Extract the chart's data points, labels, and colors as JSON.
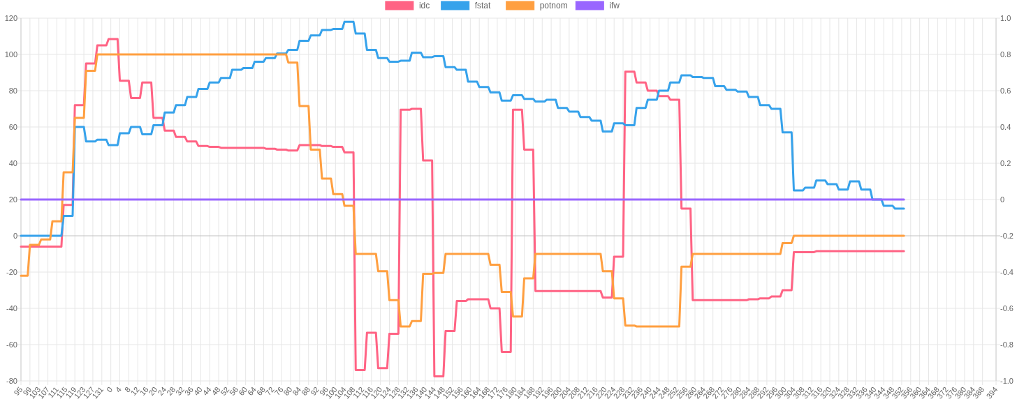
{
  "chart_data": {
    "type": "line",
    "legend": "top",
    "grid": true,
    "categories": [
      "95",
      null,
      null,
      null,
      "99",
      null,
      null,
      null,
      "103",
      null,
      null,
      null,
      "107",
      null,
      null,
      null,
      "111",
      null,
      null,
      null,
      "115",
      null,
      null,
      null,
      "119",
      null,
      null,
      null,
      "123",
      null,
      null,
      null,
      "127",
      null,
      null,
      null,
      "131",
      null,
      null,
      null,
      "0",
      null,
      null,
      null,
      "4",
      null,
      null,
      null,
      "8",
      null,
      null,
      null,
      "12",
      null,
      null,
      null,
      "16",
      null,
      null,
      null,
      "20",
      null,
      null,
      null,
      "24",
      null,
      null,
      null,
      "28",
      null,
      null,
      null,
      "32",
      null,
      null,
      null,
      "36",
      null,
      null,
      null,
      "40",
      null,
      null,
      null,
      "44",
      null,
      null,
      null,
      "48",
      null,
      null,
      null,
      "52",
      null,
      null,
      null,
      "56",
      null,
      null,
      null,
      "60",
      null,
      null,
      null,
      "64",
      null,
      null,
      null,
      "68",
      null,
      null,
      null,
      "72",
      null,
      null,
      null,
      "76",
      null,
      null,
      null,
      "80",
      null,
      null,
      null,
      "84",
      null,
      null,
      null,
      "88",
      null,
      null,
      null,
      "92",
      null,
      null,
      null,
      "96",
      null,
      null,
      null,
      "100",
      null,
      null,
      null,
      "104",
      null,
      null,
      null,
      "108",
      null,
      null,
      null,
      "112",
      null,
      null,
      null,
      "116",
      null,
      null,
      null,
      "120",
      null,
      null,
      null,
      "124",
      null,
      null,
      null,
      "128",
      null,
      null,
      null,
      "132",
      null,
      null,
      null,
      "136",
      null,
      null,
      null,
      "140",
      null,
      null,
      null,
      "144",
      null,
      null,
      null,
      "148",
      null,
      null,
      null,
      "152",
      null,
      null,
      null,
      "156",
      null,
      null,
      null,
      "160",
      null,
      null,
      null,
      "164",
      null,
      null,
      null,
      "168",
      null,
      null,
      null,
      "172",
      null,
      null,
      null,
      "176",
      null,
      null,
      null,
      "180",
      null,
      null,
      null,
      "184",
      null,
      null,
      null,
      "188",
      null,
      null,
      null,
      "192",
      null,
      null,
      null,
      "196",
      null,
      null,
      null,
      "200",
      null,
      null,
      null,
      "204",
      null,
      null,
      null,
      "208",
      null,
      null,
      null,
      "212",
      null,
      null,
      null,
      "216",
      null,
      null,
      null,
      "220",
      null,
      null,
      null,
      "224",
      null,
      null,
      null,
      "228",
      null,
      null,
      null,
      "232",
      null,
      null,
      null,
      "236",
      null,
      null,
      null,
      "240",
      null,
      null,
      null,
      "244",
      null,
      null,
      null,
      "248",
      null,
      null,
      null,
      "252",
      null,
      null,
      null,
      "256",
      null,
      null,
      null,
      "260",
      null,
      null,
      null,
      "264",
      null,
      null,
      null,
      "268",
      null,
      null,
      null,
      "272",
      null,
      null,
      null,
      "276",
      null,
      null,
      null,
      "280",
      null,
      null,
      null,
      "284",
      null,
      null,
      null,
      "288",
      null,
      null,
      null,
      "292",
      null,
      null,
      null,
      "296",
      null,
      null,
      null,
      "300",
      null,
      null,
      null,
      "304",
      null,
      null,
      null,
      "308",
      null,
      null,
      null,
      "312",
      null,
      null,
      null,
      "316",
      null,
      null,
      null,
      "320",
      null,
      null,
      null,
      "324",
      null,
      null,
      null,
      "328",
      null,
      null,
      null,
      "332",
      null,
      null,
      null,
      "336",
      null,
      null,
      null,
      "340",
      null,
      null,
      null,
      "344",
      null,
      null,
      null,
      "348",
      null,
      null,
      null,
      "352",
      null,
      null,
      null,
      "356",
      null,
      null,
      null,
      "360",
      null,
      null,
      null,
      "364",
      null,
      null,
      null,
      "368",
      null,
      null,
      null,
      "372",
      null,
      null,
      null,
      "376",
      null,
      null,
      null,
      "380",
      null,
      null,
      null,
      "384",
      null,
      null,
      null,
      "388",
      null,
      null,
      null,
      null,
      null,
      "394"
    ],
    "ylim": [
      -80,
      120
    ],
    "yticks": [
      -80,
      -60,
      -40,
      -20,
      0,
      20,
      40,
      60,
      80,
      100,
      120
    ],
    "y2lim": [
      -1,
      1
    ],
    "y2ticks": [
      {
        "value": -1,
        "label": "-1.0"
      },
      -0.8,
      -0.6,
      -0.4,
      -0.2,
      0,
      0.2,
      0.4,
      0.6,
      0.8,
      {
        "value": 1,
        "label": "1.0"
      }
    ],
    "series": [
      {
        "name": "idc",
        "color": "#ff6384",
        "values": [
          -6,
          -6,
          -6,
          -6,
          -6,
          -6,
          -6,
          -6,
          -6,
          -6,
          -6,
          -6,
          -6,
          -6,
          -6,
          -6,
          -6,
          -6,
          -6,
          17,
          17,
          17,
          17,
          17,
          72,
          72,
          72,
          72,
          72,
          95,
          95,
          95,
          95,
          95,
          105,
          105,
          105,
          105,
          105,
          108.5,
          108.5,
          108.5,
          108.5,
          108.5,
          85.5,
          85.5,
          85.5,
          85.5,
          85.5,
          76,
          76,
          76,
          76,
          76,
          84.5,
          84.5,
          84.5,
          84.5,
          84.5,
          65,
          65,
          65,
          65,
          65,
          58,
          58,
          58,
          58,
          58,
          54.5,
          54.5,
          54.5,
          54.5,
          54.5,
          52,
          52,
          52,
          52,
          52,
          49.5,
          49.5,
          49.5,
          49.5,
          49.5,
          49,
          49,
          49,
          49,
          49,
          48.5,
          48.5,
          48.5,
          48.5,
          48.5,
          48.5,
          48.5,
          48.5,
          48.5,
          48.5,
          48.5,
          48.5,
          48.5,
          48.5,
          48.5,
          48.5,
          48.5,
          48.5,
          48.5,
          48.5,
          48,
          48,
          48,
          48,
          48,
          47.5,
          47.5,
          47.5,
          47.5,
          47.5,
          47,
          47,
          47,
          47,
          47,
          50,
          50,
          50,
          50,
          50,
          50,
          50,
          50,
          50,
          50,
          49.5,
          49.5,
          49.5,
          49.5,
          49.5,
          49,
          49,
          49,
          49,
          49,
          46,
          46,
          46,
          46,
          46,
          -74,
          -74,
          -74,
          -74,
          -74,
          -53.5,
          -53.5,
          -53.5,
          -53.5,
          -53.5,
          -73,
          -73,
          -73,
          -73,
          -73,
          -54,
          -54,
          -54,
          -54,
          -54,
          69.5,
          69.5,
          69.5,
          69.5,
          69.5,
          70,
          70,
          70,
          70,
          70,
          41.5,
          41.5,
          41.5,
          41.5,
          41.5,
          -77.5,
          -77.5,
          -77.5,
          -77.5,
          -77.5,
          -52.5,
          -52.5,
          -52.5,
          -52.5,
          -52.5,
          -36,
          -36,
          -36,
          -36,
          -36,
          -35,
          -35,
          -35,
          -35,
          -35,
          -35,
          -35,
          -35,
          -35,
          -35,
          -40,
          -40,
          -40,
          -40,
          -40,
          -64,
          -64,
          -64,
          -64,
          -64,
          69.5,
          69.5,
          69.5,
          69.5,
          69.5,
          47.5,
          47.5,
          47.5,
          47.5,
          47.5,
          -30.5,
          -30.5,
          -30.5,
          -30.5,
          -30.5,
          -30.5,
          -30.5,
          -30.5,
          -30.5,
          -30.5,
          -30.5,
          -30.5,
          -30.5,
          -30.5,
          -30.5,
          -30.5,
          -30.5,
          -30.5,
          -30.5,
          -30.5,
          -30.5,
          -30.5,
          -30.5,
          -30.5,
          -30.5,
          -30.5,
          -30.5,
          -30.5,
          -30.5,
          -30.5,
          -34,
          -34,
          -34,
          -34,
          -34,
          -11.5,
          -11.5,
          -11.5,
          -11.5,
          -11.5,
          90.5,
          90.5,
          90.5,
          90.5,
          90.5,
          84.5,
          84.5,
          84.5,
          84.5,
          84.5,
          80,
          80,
          80,
          80,
          80,
          77,
          77,
          77,
          77,
          77,
          75,
          75,
          75,
          75,
          75,
          15,
          15,
          15,
          15,
          15,
          -35.5,
          -35.5,
          -35.5,
          -35.5,
          -35.5,
          -35.5,
          -35.5,
          -35.5,
          -35.5,
          -35.5,
          -35.5,
          -35.5,
          -35.5,
          -35.5,
          -35.5,
          -35.5,
          -35.5,
          -35.5,
          -35.5,
          -35.5,
          -35.5,
          -35.5,
          -35.5,
          -35.5,
          -35.5,
          -35,
          -35,
          -35,
          -35,
          -35,
          -34.5,
          -34.5,
          -34.5,
          -34.5,
          -34.5,
          -33.5,
          -33.5,
          -33.5,
          -33.5,
          -33.5,
          -30,
          -30,
          -30,
          -30,
          -30,
          -9,
          -9,
          -9,
          -9,
          -9,
          -9,
          -9,
          -9,
          -9,
          -9,
          -8.5,
          -8.5,
          -8.5,
          -8.5,
          -8.5,
          -8.5,
          -8.5,
          -8.5,
          -8.5,
          -8.5,
          -8.5,
          -8.5,
          -8.5,
          -8.5,
          -8.5,
          -8.5,
          -8.5,
          -8.5,
          -8.5,
          -8.5,
          -8.5,
          -8.5,
          -8.5,
          -8.5,
          -8.5,
          -8.5,
          -8.5,
          -8.5,
          -8.5,
          -8.5,
          -8.5,
          -8.5,
          -8.5,
          -8.5,
          -8.5,
          -8.5,
          -8.5,
          -8.5,
          -8.5,
          -8.5,
          null,
          null,
          null,
          null,
          null,
          null,
          null,
          null,
          null,
          null,
          null,
          null,
          null,
          null,
          null,
          null,
          null,
          null,
          null,
          null,
          null,
          null,
          null,
          null,
          null,
          null,
          null,
          null,
          null,
          null,
          null,
          null,
          null,
          null,
          null,
          null,
          null,
          null,
          null,
          null,
          null
        ]
      },
      {
        "name": "fstat",
        "color": "#36a2eb",
        "values": [
          0,
          0,
          0,
          0,
          0,
          0,
          0,
          0,
          0,
          0,
          0,
          0,
          0,
          0,
          0,
          0,
          0,
          0,
          0,
          11,
          11,
          11,
          11,
          11,
          60,
          60,
          60,
          60,
          60,
          52,
          52,
          52,
          52,
          52,
          53,
          53,
          53,
          53,
          53,
          50,
          50,
          50,
          50,
          50,
          56.5,
          56.5,
          56.5,
          56.5,
          56.5,
          60,
          60,
          60,
          60,
          60,
          56,
          56,
          56,
          56,
          56,
          61,
          61,
          61,
          61,
          61,
          68,
          68,
          68,
          68,
          68,
          72,
          72,
          72,
          72,
          72,
          76.5,
          76.5,
          76.5,
          76.5,
          76.5,
          81,
          81,
          81,
          81,
          81,
          84.5,
          84.5,
          84.5,
          84.5,
          84.5,
          87,
          87,
          87,
          87,
          87,
          91.5,
          91.5,
          91.5,
          91.5,
          91.5,
          92.5,
          92.5,
          92.5,
          92.5,
          92.5,
          96,
          96,
          96,
          96,
          96,
          98,
          98,
          98,
          98,
          98,
          100.5,
          100.5,
          100.5,
          100.5,
          100.5,
          102.5,
          102.5,
          102.5,
          102.5,
          102.5,
          107.5,
          107.5,
          107.5,
          107.5,
          107.5,
          110.5,
          110.5,
          110.5,
          110.5,
          110.5,
          113.5,
          113.5,
          113.5,
          113.5,
          113.5,
          114,
          114,
          114,
          114,
          114,
          118,
          118,
          118,
          118,
          118,
          111.5,
          111.5,
          111.5,
          111.5,
          111.5,
          102.5,
          102.5,
          102.5,
          102.5,
          102.5,
          98,
          98,
          98,
          98,
          98,
          96,
          96,
          96,
          96,
          96,
          96.5,
          96.5,
          96.5,
          96.5,
          96.5,
          101,
          101,
          101,
          101,
          101,
          98.5,
          98.5,
          98.5,
          98.5,
          98.5,
          99,
          99,
          99,
          99,
          99,
          93,
          93,
          93,
          93,
          93,
          91.5,
          91.5,
          91.5,
          91.5,
          91.5,
          85,
          85,
          85,
          85,
          85,
          82,
          82,
          82,
          82,
          82,
          79,
          79,
          79,
          79,
          79,
          74.5,
          74.5,
          74.5,
          74.5,
          74.5,
          77.5,
          77.5,
          77.5,
          77.5,
          77.5,
          75.5,
          75.5,
          75.5,
          75.5,
          75.5,
          74,
          74,
          74,
          74,
          74,
          75,
          75,
          75,
          75,
          75,
          70.5,
          70.5,
          70.5,
          70.5,
          70.5,
          68.5,
          68.5,
          68.5,
          68.5,
          68.5,
          65.5,
          65.5,
          65.5,
          65.5,
          65.5,
          63.5,
          63.5,
          63.5,
          63.5,
          63.5,
          57.5,
          57.5,
          57.5,
          57.5,
          57.5,
          62,
          62,
          62,
          62,
          62,
          61,
          61,
          61,
          61,
          61,
          70.5,
          70.5,
          70.5,
          70.5,
          70.5,
          75,
          75,
          75,
          75,
          75,
          80,
          80,
          80,
          80,
          80,
          84.5,
          84.5,
          84.5,
          84.5,
          84.5,
          88.5,
          88.5,
          88.5,
          88.5,
          88.5,
          87.5,
          87.5,
          87.5,
          87.5,
          87.5,
          87,
          87,
          87,
          87,
          87,
          82.5,
          82.5,
          82.5,
          82.5,
          82.5,
          80.5,
          80.5,
          80.5,
          80.5,
          80.5,
          79.5,
          79.5,
          79.5,
          79.5,
          79.5,
          76.5,
          76.5,
          76.5,
          76.5,
          76.5,
          72,
          72,
          72,
          72,
          72,
          70,
          70,
          70,
          70,
          70,
          57,
          57,
          57,
          57,
          57,
          25,
          25,
          25,
          25,
          25,
          26.5,
          26.5,
          26.5,
          26.5,
          26.5,
          30.5,
          30.5,
          30.5,
          30.5,
          30.5,
          28.5,
          28.5,
          28.5,
          28.5,
          28.5,
          25.5,
          25.5,
          25.5,
          25.5,
          25.5,
          30,
          30,
          30,
          30,
          30,
          25.5,
          25.5,
          25.5,
          25.5,
          25.5,
          20,
          20,
          20,
          20,
          20,
          16.5,
          16.5,
          16.5,
          16.5,
          16.5,
          15,
          15,
          15,
          15,
          15,
          null,
          null,
          null,
          null,
          null,
          null,
          null,
          null,
          null,
          null,
          null,
          null,
          null,
          null,
          null,
          null,
          null,
          null,
          null,
          null,
          null,
          null,
          null,
          null,
          null,
          null,
          null,
          null,
          null,
          null,
          null,
          null,
          null,
          null,
          null,
          null,
          null,
          null,
          null,
          null,
          null
        ]
      },
      {
        "name": "potnom",
        "color": "#ff9f40",
        "values": [
          -22,
          -22,
          -22,
          -22,
          -5,
          -5,
          -5,
          -5,
          -5,
          -2,
          -2,
          -2,
          -2,
          -2,
          8,
          8,
          8,
          8,
          8,
          35,
          35,
          35,
          35,
          35,
          65,
          65,
          65,
          65,
          65,
          91,
          91,
          91,
          91,
          91,
          100,
          100,
          100,
          100,
          100,
          100,
          100,
          100,
          100,
          100,
          100,
          100,
          100,
          100,
          100,
          100,
          100,
          100,
          100,
          100,
          100,
          100,
          100,
          100,
          100,
          100,
          100,
          100,
          100,
          100,
          100,
          100,
          100,
          100,
          100,
          100,
          100,
          100,
          100,
          100,
          100,
          100,
          100,
          100,
          100,
          100,
          100,
          100,
          100,
          100,
          100,
          100,
          100,
          100,
          100,
          100,
          100,
          100,
          100,
          100,
          100,
          100,
          100,
          100,
          100,
          100,
          100,
          100,
          100,
          100,
          100,
          100,
          100,
          100,
          100,
          100,
          100,
          100,
          100,
          100,
          100,
          100,
          100,
          100,
          100,
          95.5,
          95.5,
          95.5,
          95.5,
          95.5,
          71.5,
          71.5,
          71.5,
          71.5,
          71.5,
          47.5,
          47.5,
          47.5,
          47.5,
          47.5,
          31.5,
          31.5,
          31.5,
          31.5,
          31.5,
          23,
          23,
          23,
          23,
          23,
          16.5,
          16.5,
          16.5,
          16.5,
          16.5,
          -10,
          -10,
          -10,
          -10,
          -10,
          -10,
          -10,
          -10,
          -10,
          -10,
          -19.5,
          -19.5,
          -19.5,
          -19.5,
          -19.5,
          -35.5,
          -35.5,
          -35.5,
          -35.5,
          -35.5,
          -50,
          -50,
          -50,
          -50,
          -50,
          -47,
          -47,
          -47,
          -47,
          -47,
          -21,
          -21,
          -21,
          -21,
          -21,
          -20.5,
          -20.5,
          -20.5,
          -20.5,
          -20.5,
          -10,
          -10,
          -10,
          -10,
          -10,
          -10,
          -10,
          -10,
          -10,
          -10,
          -10,
          -10,
          -10,
          -10,
          -10,
          -10,
          -10,
          -10,
          -10,
          -10,
          -16,
          -16,
          -16,
          -16,
          -16,
          -31,
          -31,
          -31,
          -31,
          -31,
          -44.5,
          -44.5,
          -44.5,
          -44.5,
          -44.5,
          -23.5,
          -23.5,
          -23.5,
          -23.5,
          -23.5,
          -10,
          -10,
          -10,
          -10,
          -10,
          -10,
          -10,
          -10,
          -10,
          -10,
          -10,
          -10,
          -10,
          -10,
          -10,
          -10,
          -10,
          -10,
          -10,
          -10,
          -10,
          -10,
          -10,
          -10,
          -10,
          -10,
          -10,
          -10,
          -10,
          -10,
          -19.5,
          -19.5,
          -19.5,
          -19.5,
          -19.5,
          -34.5,
          -34.5,
          -34.5,
          -34.5,
          -34.5,
          -49.5,
          -49.5,
          -49.5,
          -49.5,
          -49.5,
          -50,
          -50,
          -50,
          -50,
          -50,
          -50,
          -50,
          -50,
          -50,
          -50,
          -50,
          -50,
          -50,
          -50,
          -50,
          -50,
          -50,
          -50,
          -50,
          -50,
          -17,
          -17,
          -17,
          -17,
          -17,
          -10,
          -10,
          -10,
          -10,
          -10,
          -10,
          -10,
          -10,
          -10,
          -10,
          -10,
          -10,
          -10,
          -10,
          -10,
          -10,
          -10,
          -10,
          -10,
          -10,
          -10,
          -10,
          -10,
          -10,
          -10,
          -10,
          -10,
          -10,
          -10,
          -10,
          -10,
          -10,
          -10,
          -10,
          -10,
          -10,
          -10,
          -10,
          -10,
          -10,
          -4,
          -4,
          -4,
          -4,
          -4,
          0,
          0,
          0,
          0,
          0,
          0,
          0,
          0,
          0,
          0,
          0,
          0,
          0,
          0,
          0,
          0,
          0,
          0,
          0,
          0,
          0,
          0,
          0,
          0,
          0,
          0,
          0,
          0,
          0,
          0,
          0,
          0,
          0,
          0,
          0,
          0,
          0,
          0,
          0,
          0,
          0,
          0,
          0,
          0,
          0,
          0,
          0,
          0,
          0,
          0,
          null,
          null,
          null,
          null,
          null,
          null,
          null,
          null,
          null,
          null,
          null,
          null,
          null,
          null,
          null,
          null,
          null,
          null,
          null,
          null,
          null,
          null,
          null,
          null,
          null,
          null,
          null,
          null,
          null,
          null,
          null,
          null,
          null,
          null,
          null,
          null,
          null,
          null,
          null,
          null,
          null
        ]
      },
      {
        "name": "ifw",
        "color": "#9966ff",
        "axis": "y2",
        "values": [
          0,
          0,
          0,
          0,
          0,
          0,
          0,
          0,
          0,
          0,
          0,
          0,
          0,
          0,
          0,
          0,
          0,
          0,
          0,
          0,
          0,
          0,
          0,
          0,
          0,
          0,
          0,
          0,
          0,
          0,
          0,
          0,
          0,
          0,
          0,
          0,
          0,
          0,
          0,
          0,
          0,
          0,
          0,
          0,
          0,
          0,
          0,
          0,
          0,
          0,
          0,
          0,
          0,
          0,
          0,
          0,
          0,
          0,
          0,
          0,
          0,
          0,
          0,
          0,
          0,
          0,
          0,
          0,
          0,
          0,
          0,
          0,
          0,
          0,
          0,
          0,
          0,
          0,
          0,
          0,
          0,
          0,
          0,
          0,
          0,
          0,
          0,
          0,
          0,
          0,
          0,
          0,
          0,
          0,
          0,
          0,
          0,
          0,
          0,
          0,
          0,
          0,
          0,
          0,
          0,
          0,
          0,
          0,
          0,
          0,
          0,
          0,
          0,
          0,
          0,
          0,
          0,
          0,
          0,
          0,
          0,
          0,
          0,
          0,
          0,
          0,
          0,
          0,
          0,
          0,
          0,
          0,
          0,
          0,
          0,
          0,
          0,
          0,
          0,
          0,
          0,
          0,
          0,
          0,
          0,
          0,
          0,
          0,
          0,
          0,
          0,
          0,
          0,
          0,
          0,
          0,
          0,
          0,
          0,
          0,
          0,
          0,
          0,
          0,
          0,
          0,
          0,
          0,
          0,
          0,
          0,
          0,
          0,
          0,
          0,
          0,
          0,
          0,
          0,
          0,
          0,
          0,
          0,
          0,
          0,
          0,
          0,
          0,
          0,
          0,
          0,
          0,
          0,
          0,
          0,
          0,
          0,
          0,
          0,
          0,
          0,
          0,
          0,
          0,
          0,
          0,
          0,
          0,
          0,
          0,
          0,
          0,
          0,
          0,
          0,
          0,
          0,
          0,
          0,
          0,
          0,
          0,
          0,
          0,
          0,
          0,
          0,
          0,
          0,
          0,
          0,
          0,
          0,
          0,
          0,
          0,
          0,
          0,
          0,
          0,
          0,
          0,
          0,
          0,
          0,
          0,
          0,
          0,
          0,
          0,
          0,
          0,
          0,
          0,
          0,
          0,
          0,
          0,
          0,
          0,
          0,
          0,
          0,
          0,
          0,
          0,
          0,
          0,
          0,
          0,
          0,
          0,
          0,
          0,
          0,
          0,
          0,
          0,
          0,
          0,
          0,
          0,
          0,
          0,
          0,
          0,
          0,
          0,
          0,
          0,
          0,
          0,
          0,
          0,
          0,
          0,
          0,
          0,
          0,
          0,
          0,
          0,
          0,
          0,
          0,
          0,
          0,
          0,
          0,
          0,
          0,
          0,
          0,
          0,
          0,
          0,
          0,
          0,
          0,
          0,
          0,
          0,
          0,
          0,
          0,
          0,
          0,
          0,
          0,
          0,
          0,
          0,
          0,
          0,
          0,
          0,
          0,
          0,
          0,
          0,
          0,
          0,
          0,
          0,
          0,
          0,
          0,
          0,
          0,
          0,
          0,
          0,
          0,
          0,
          0,
          0,
          0,
          0,
          0,
          0,
          0,
          0,
          0,
          0,
          0,
          0,
          0,
          0,
          0,
          0,
          0,
          0,
          0,
          0,
          0,
          0,
          0,
          0,
          0,
          0,
          0,
          0,
          0,
          0,
          0,
          0,
          0,
          0,
          0,
          0,
          0,
          0,
          0,
          0,
          null,
          null,
          null,
          null,
          null,
          null,
          null,
          null,
          null,
          null,
          null,
          null,
          null,
          null,
          null,
          null,
          null,
          null,
          null,
          null,
          null,
          null,
          null,
          null,
          null,
          null,
          null,
          null,
          null,
          null,
          null,
          null,
          null,
          null,
          null,
          null,
          null,
          null,
          null,
          null,
          null
        ]
      }
    ]
  }
}
